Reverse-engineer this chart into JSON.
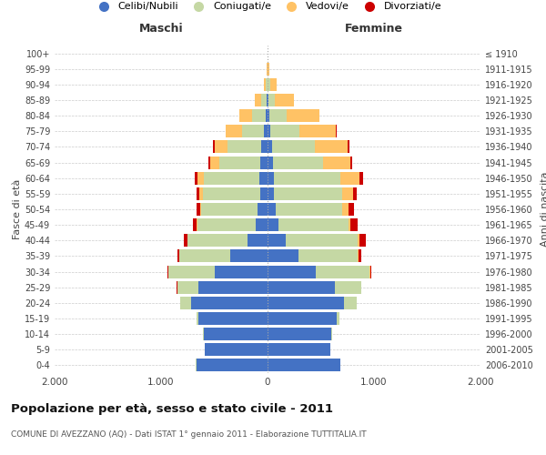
{
  "age_groups": [
    "0-4",
    "5-9",
    "10-14",
    "15-19",
    "20-24",
    "25-29",
    "30-34",
    "35-39",
    "40-44",
    "45-49",
    "50-54",
    "55-59",
    "60-64",
    "65-69",
    "70-74",
    "75-79",
    "80-84",
    "85-89",
    "90-94",
    "95-99",
    "100+"
  ],
  "birth_years": [
    "2006-2010",
    "2001-2005",
    "1996-2000",
    "1991-1995",
    "1986-1990",
    "1981-1985",
    "1976-1980",
    "1971-1975",
    "1966-1970",
    "1961-1965",
    "1956-1960",
    "1951-1955",
    "1946-1950",
    "1941-1945",
    "1936-1940",
    "1931-1935",
    "1926-1930",
    "1921-1925",
    "1916-1920",
    "1911-1915",
    "≤ 1910"
  ],
  "colors": {
    "celibi": "#4472c4",
    "coniugati": "#c5d8a4",
    "vedovi": "#ffc265",
    "divorziati": "#cc0000"
  },
  "males": {
    "celibi": [
      670,
      590,
      600,
      650,
      720,
      650,
      500,
      350,
      190,
      110,
      90,
      70,
      75,
      70,
      60,
      30,
      18,
      8,
      3,
      1,
      0
    ],
    "coniugati": [
      1,
      2,
      5,
      20,
      100,
      200,
      430,
      480,
      560,
      550,
      530,
      540,
      520,
      380,
      320,
      210,
      130,
      50,
      15,
      3,
      0
    ],
    "vedovi": [
      0,
      0,
      0,
      0,
      0,
      0,
      1,
      2,
      3,
      5,
      15,
      30,
      60,
      90,
      120,
      150,
      120,
      60,
      15,
      3,
      0
    ],
    "divorziati": [
      0,
      0,
      0,
      0,
      1,
      2,
      8,
      15,
      35,
      40,
      35,
      25,
      30,
      15,
      10,
      5,
      0,
      0,
      0,
      0,
      0
    ]
  },
  "females": {
    "celibi": [
      680,
      590,
      600,
      650,
      720,
      630,
      450,
      290,
      170,
      100,
      80,
      60,
      60,
      55,
      45,
      25,
      18,
      10,
      3,
      1,
      0
    ],
    "coniugati": [
      1,
      2,
      5,
      25,
      120,
      250,
      510,
      560,
      680,
      660,
      620,
      640,
      620,
      470,
      400,
      270,
      160,
      60,
      20,
      3,
      0
    ],
    "vedovi": [
      0,
      0,
      0,
      0,
      0,
      1,
      2,
      5,
      10,
      20,
      60,
      100,
      180,
      250,
      310,
      350,
      310,
      180,
      60,
      15,
      2
    ],
    "divorziati": [
      0,
      0,
      0,
      0,
      1,
      3,
      12,
      25,
      60,
      65,
      55,
      40,
      40,
      20,
      15,
      8,
      2,
      1,
      0,
      0,
      0
    ]
  },
  "title": "Popolazione per età, sesso e stato civile - 2011",
  "subtitle": "COMUNE DI AVEZZANO (AQ) - Dati ISTAT 1° gennaio 2011 - Elaborazione TUTTITALIA.IT",
  "xlabel_left": "Maschi",
  "xlabel_right": "Femmine",
  "ylabel_left": "Fasce di età",
  "ylabel_right": "Anni di nascita",
  "xlim": 2000,
  "legend_labels": [
    "Celibi/Nubili",
    "Coniugati/e",
    "Vedovi/e",
    "Divorziati/e"
  ]
}
